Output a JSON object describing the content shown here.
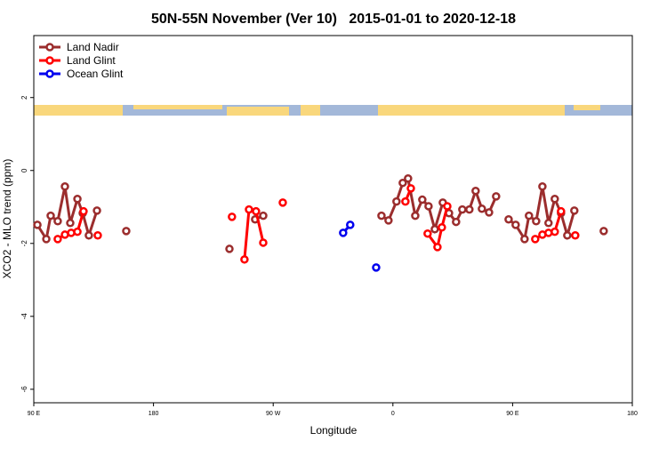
{
  "chart_data": {
    "type": "line",
    "title": "50N-55N November (Ver 10)   2015-01-01 to 2020-12-18",
    "x_label": "Longitude",
    "y_label": "XCO2 - MLO trend (ppm)",
    "xlim": [
      90,
      540
    ],
    "ylim": [
      -6.37,
      3.7
    ],
    "xticks": [
      {
        "value": 90,
        "label": "90 E"
      },
      {
        "value": 180,
        "label": "180"
      },
      {
        "value": 270,
        "label": "90 W"
      },
      {
        "value": 360,
        "label": "0"
      },
      {
        "value": 450,
        "label": "90 E"
      },
      {
        "value": 540,
        "label": "180"
      }
    ],
    "yticks": [
      2,
      0,
      -2,
      -4,
      -6
    ],
    "legend": "top-left",
    "series": [
      {
        "name": "Land Nadir",
        "color": "#9b2d2d",
        "x": [
          92.7,
          99.4,
          102.7,
          108,
          113.4,
          117.4,
          122.8,
          126.8,
          131.4,
          137.5,
          null,
          159.5,
          null,
          237.1,
          null,
          256.4,
          262.5,
          null,
          351.4,
          356.7,
          362.7,
          367.4,
          371.4,
          376.8,
          382.1,
          386.8,
          391.5,
          397.5,
          402.2,
          407.5,
          412.2,
          417.5,
          422.2,
          426.9,
          432.3,
          437.6,
          null,
          447,
          452.3,
          459,
          462.3,
          467.7,
          472.4,
          477,
          481.7,
          486.4,
          491.1,
          496.4,
          null,
          518.5
        ],
        "values": [
          -1.49,
          -1.88,
          -1.24,
          -1.39,
          -0.44,
          -1.44,
          -0.78,
          -1.17,
          -1.78,
          -1.1,
          null,
          -1.66,
          null,
          -2.15,
          null,
          -1.34,
          -1.24,
          null,
          -1.24,
          -1.37,
          -0.85,
          -0.34,
          -0.22,
          -1.24,
          -0.8,
          -0.98,
          -1.61,
          -0.88,
          -1.17,
          -1.41,
          -1.07,
          -1.07,
          -0.56,
          -1.05,
          -1.15,
          -0.71,
          null,
          -1.34,
          -1.49,
          -1.88,
          -1.24,
          -1.39,
          -0.44,
          -1.44,
          -0.78,
          -1.17,
          -1.78,
          -1.1,
          null,
          -1.66
        ]
      },
      {
        "name": "Land Glint",
        "color": "#ff0000",
        "x": [
          108,
          113.4,
          118.1,
          122.8,
          127.4,
          null,
          138.1,
          null,
          239,
          null,
          248.4,
          251.8,
          257.1,
          262.5,
          null,
          277.2,
          null,
          369.4,
          373.5,
          null,
          386.1,
          393.5,
          396.8,
          400.9,
          null,
          467,
          472.4,
          477,
          481.7,
          486.4,
          null,
          497.1
        ],
        "values": [
          -1.88,
          -1.76,
          -1.71,
          -1.68,
          -1.12,
          null,
          -1.78,
          null,
          -1.27,
          null,
          -2.44,
          -1.07,
          -1.12,
          -1.98,
          null,
          -0.88,
          null,
          -0.85,
          -0.49,
          null,
          -1.73,
          -2.1,
          -1.56,
          -0.98,
          null,
          -1.88,
          -1.76,
          -1.71,
          -1.68,
          -1.12,
          null,
          -1.78
        ]
      },
      {
        "name": "Ocean Glint",
        "color": "#0000ee",
        "x": [
          322.6,
          327.9,
          null,
          347.4
        ],
        "values": [
          -1.71,
          -1.49,
          null,
          -2.66
        ]
      }
    ]
  }
}
